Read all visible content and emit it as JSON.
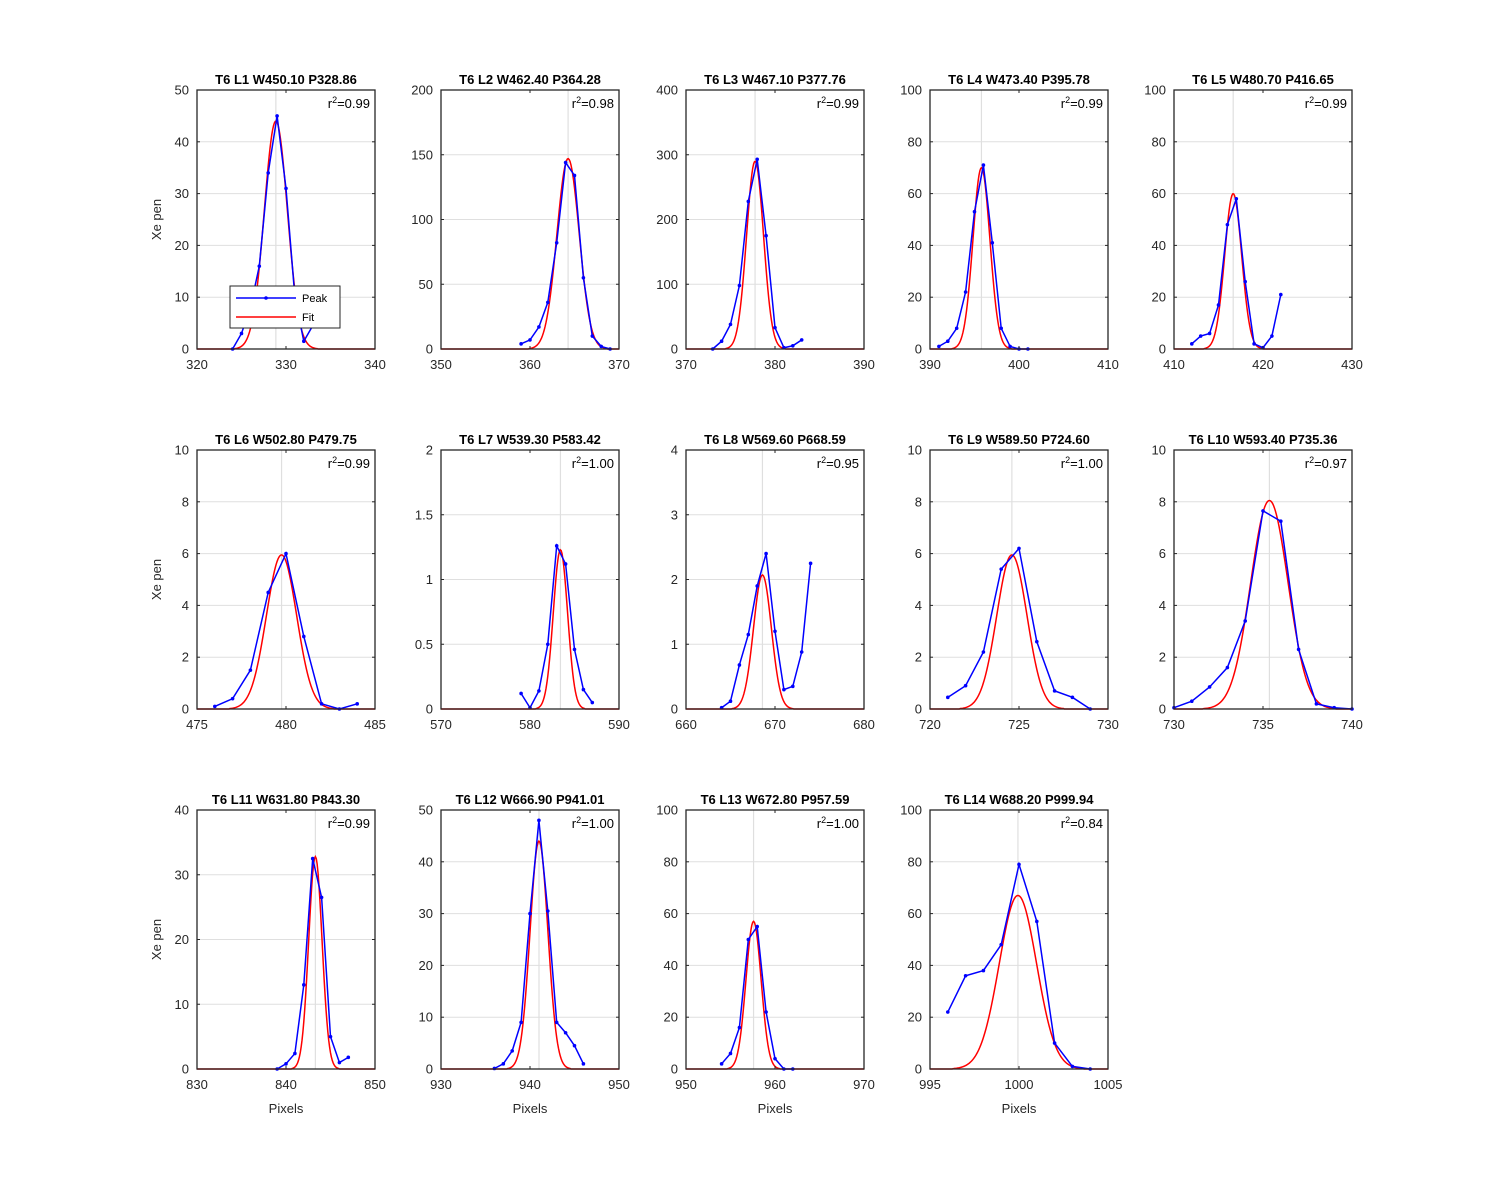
{
  "colors": {
    "peak": "#0000ff",
    "fit": "#ff0000",
    "axis": "#262626",
    "grid": "#dfdfdf"
  },
  "legend": {
    "peak_label": "Peak",
    "fit_label": "Fit",
    "placement": "lower-left of first panel"
  },
  "chart_data": [
    {
      "type": "line",
      "title": "T6 L1 W450.10 P328.86",
      "r2": "r^2=0.99",
      "ylabel": "Xe pen",
      "xlabel": "",
      "xlim": [
        320,
        340
      ],
      "ylim": [
        0,
        50
      ],
      "xticks": [
        320,
        330,
        340
      ],
      "yticks": [
        0,
        10,
        20,
        30,
        40,
        50
      ],
      "center": 328.86,
      "series": [
        {
          "name": "Peak",
          "x": [
            324,
            325,
            326,
            327,
            328,
            329,
            330,
            331,
            332,
            333
          ],
          "y": [
            0,
            3,
            8,
            16,
            34,
            45,
            31,
            10,
            1.5,
            4.5
          ]
        },
        {
          "name": "Fit",
          "gauss": {
            "A": 44,
            "mu": 328.86,
            "sigma": 1.3
          }
        }
      ]
    },
    {
      "type": "line",
      "title": "T6 L2 W462.40 P364.28",
      "r2": "r^2=0.98",
      "ylabel": "",
      "xlabel": "",
      "xlim": [
        350,
        370
      ],
      "ylim": [
        0,
        200
      ],
      "xticks": [
        350,
        360,
        370
      ],
      "yticks": [
        0,
        50,
        100,
        150,
        200
      ],
      "center": 364.28,
      "series": [
        {
          "name": "Peak",
          "x": [
            359,
            360,
            361,
            362,
            363,
            364,
            365,
            366,
            367,
            368,
            369
          ],
          "y": [
            4,
            7,
            17,
            36,
            82,
            144,
            134,
            55,
            10,
            2,
            0
          ]
        },
        {
          "name": "Fit",
          "gauss": {
            "A": 147,
            "mu": 364.28,
            "sigma": 1.25
          }
        }
      ]
    },
    {
      "type": "line",
      "title": "T6 L3 W467.10 P377.76",
      "r2": "r^2=0.99",
      "ylabel": "",
      "xlabel": "",
      "xlim": [
        370,
        390
      ],
      "ylim": [
        0,
        400
      ],
      "xticks": [
        370,
        380,
        390
      ],
      "yticks": [
        0,
        100,
        200,
        300,
        400
      ],
      "center": 377.76,
      "series": [
        {
          "name": "Peak",
          "x": [
            373,
            374,
            375,
            376,
            377,
            378,
            379,
            380,
            381,
            382,
            383
          ],
          "y": [
            0,
            12,
            38,
            98,
            228,
            293,
            175,
            33,
            2,
            5,
            14
          ]
        },
        {
          "name": "Fit",
          "gauss": {
            "A": 290,
            "mu": 377.76,
            "sigma": 0.95
          }
        }
      ]
    },
    {
      "type": "line",
      "title": "T6 L4 W473.40 P395.78",
      "r2": "r^2=0.99",
      "ylabel": "",
      "xlabel": "",
      "xlim": [
        390,
        410
      ],
      "ylim": [
        0,
        100
      ],
      "xticks": [
        390,
        400,
        410
      ],
      "yticks": [
        0,
        20,
        40,
        60,
        80,
        100
      ],
      "center": 395.78,
      "series": [
        {
          "name": "Peak",
          "x": [
            391,
            392,
            393,
            394,
            395,
            396,
            397,
            398,
            399,
            400,
            401
          ],
          "y": [
            1,
            3,
            8,
            22,
            53,
            71,
            41,
            8,
            1,
            0,
            0
          ]
        },
        {
          "name": "Fit",
          "gauss": {
            "A": 70,
            "mu": 395.78,
            "sigma": 0.95
          }
        }
      ]
    },
    {
      "type": "line",
      "title": "T6 L5 W480.70 P416.65",
      "r2": "r^2=0.99",
      "ylabel": "",
      "xlabel": "",
      "xlim": [
        410,
        430
      ],
      "ylim": [
        0,
        100
      ],
      "xticks": [
        410,
        420,
        430
      ],
      "yticks": [
        0,
        20,
        40,
        60,
        80,
        100
      ],
      "center": 416.65,
      "series": [
        {
          "name": "Peak",
          "x": [
            412,
            413,
            414,
            415,
            416,
            417,
            418,
            419,
            420,
            421,
            422
          ],
          "y": [
            2,
            5,
            6,
            17,
            48,
            58,
            26,
            2,
            0.5,
            5,
            21
          ]
        },
        {
          "name": "Fit",
          "gauss": {
            "A": 60,
            "mu": 416.65,
            "sigma": 0.95
          }
        }
      ]
    },
    {
      "type": "line",
      "title": "T6 L6 W502.80 P479.75",
      "r2": "r^2=0.99",
      "ylabel": "Xe pen",
      "xlabel": "",
      "xlim": [
        475,
        485
      ],
      "ylim": [
        0,
        10
      ],
      "xticks": [
        475,
        480,
        485
      ],
      "yticks": [
        0,
        2,
        4,
        6,
        8,
        10
      ],
      "center": 479.75,
      "series": [
        {
          "name": "Peak",
          "x": [
            476,
            477,
            478,
            479,
            480,
            481,
            482,
            483,
            484
          ],
          "y": [
            0.1,
            0.4,
            1.5,
            4.5,
            6,
            2.8,
            0.2,
            0,
            0.2
          ]
        },
        {
          "name": "Fit",
          "gauss": {
            "A": 5.95,
            "mu": 479.75,
            "sigma": 0.85
          }
        }
      ]
    },
    {
      "type": "line",
      "title": "T6 L7 W539.30 P583.42",
      "r2": "r^2=1.00",
      "ylabel": "",
      "xlabel": "",
      "xlim": [
        570,
        590
      ],
      "ylim": [
        0,
        2
      ],
      "xticks": [
        570,
        580,
        590
      ],
      "yticks": [
        0,
        0.5,
        1,
        1.5,
        2
      ],
      "center": 583.42,
      "series": [
        {
          "name": "Peak",
          "x": [
            579,
            580,
            581,
            582,
            583,
            584,
            585,
            586,
            587
          ],
          "y": [
            0.12,
            0.01,
            0.14,
            0.5,
            1.26,
            1.12,
            0.46,
            0.15,
            0.05
          ]
        },
        {
          "name": "Fit",
          "gauss": {
            "A": 1.23,
            "mu": 583.42,
            "sigma": 0.8
          }
        }
      ]
    },
    {
      "type": "line",
      "title": "T6 L8 W569.60 P668.59",
      "r2": "r^2=0.95",
      "ylabel": "",
      "xlabel": "",
      "xlim": [
        660,
        680
      ],
      "ylim": [
        0,
        4
      ],
      "xticks": [
        660,
        670,
        680
      ],
      "yticks": [
        0,
        1,
        2,
        3,
        4
      ],
      "center": 668.59,
      "series": [
        {
          "name": "Peak",
          "x": [
            664,
            665,
            666,
            667,
            668,
            669,
            670,
            671,
            672,
            673,
            674
          ],
          "y": [
            0.02,
            0.12,
            0.68,
            1.15,
            1.9,
            2.4,
            1.2,
            0.3,
            0.35,
            0.88,
            2.25
          ]
        },
        {
          "name": "Fit",
          "gauss": {
            "A": 2.07,
            "mu": 668.59,
            "sigma": 1.0
          }
        }
      ]
    },
    {
      "type": "line",
      "title": "T6 L9 W589.50 P724.60",
      "r2": "r^2=1.00",
      "ylabel": "",
      "xlabel": "",
      "xlim": [
        720,
        730
      ],
      "ylim": [
        0,
        10
      ],
      "xticks": [
        720,
        725,
        730
      ],
      "yticks": [
        0,
        2,
        4,
        6,
        8,
        10
      ],
      "center": 724.6,
      "series": [
        {
          "name": "Peak",
          "x": [
            721,
            722,
            723,
            724,
            725,
            726,
            727,
            728,
            729
          ],
          "y": [
            0.45,
            0.9,
            2.2,
            5.4,
            6.2,
            2.6,
            0.7,
            0.45,
            0
          ]
        },
        {
          "name": "Fit",
          "gauss": {
            "A": 5.95,
            "mu": 724.6,
            "sigma": 0.85
          }
        }
      ]
    },
    {
      "type": "line",
      "title": "T6 L10 W593.40 P735.36",
      "r2": "r^2=0.97",
      "ylabel": "",
      "xlabel": "",
      "xlim": [
        730,
        740
      ],
      "ylim": [
        0,
        10
      ],
      "xticks": [
        730,
        735,
        740
      ],
      "yticks": [
        0,
        2,
        4,
        6,
        8,
        10
      ],
      "center": 735.36,
      "series": [
        {
          "name": "Peak",
          "x": [
            730,
            731,
            732,
            733,
            734,
            735,
            736,
            737,
            738,
            739,
            740
          ],
          "y": [
            0.05,
            0.3,
            0.85,
            1.6,
            3.4,
            7.65,
            7.25,
            2.3,
            0.2,
            0.05,
            0
          ]
        },
        {
          "name": "Fit",
          "gauss": {
            "A": 8.05,
            "mu": 735.36,
            "sigma": 1.05
          }
        }
      ]
    },
    {
      "type": "line",
      "title": "T6 L11 W631.80 P843.30",
      "r2": "r^2=0.99",
      "ylabel": "Xe pen",
      "xlabel": "Pixels",
      "xlim": [
        830,
        850
      ],
      "ylim": [
        0,
        40
      ],
      "xticks": [
        830,
        840,
        850
      ],
      "yticks": [
        0,
        10,
        20,
        30,
        40
      ],
      "center": 843.3,
      "series": [
        {
          "name": "Peak",
          "x": [
            839,
            840,
            841,
            842,
            843,
            844,
            845,
            846,
            847
          ],
          "y": [
            0,
            0.8,
            2.4,
            13,
            32.5,
            26.5,
            5,
            1,
            1.8
          ]
        },
        {
          "name": "Fit",
          "gauss": {
            "A": 32.8,
            "mu": 843.3,
            "sigma": 0.75
          }
        }
      ]
    },
    {
      "type": "line",
      "title": "T6 L12 W666.90 P941.01",
      "r2": "r^2=1.00",
      "ylabel": "",
      "xlabel": "Pixels",
      "xlim": [
        930,
        950
      ],
      "ylim": [
        0,
        50
      ],
      "xticks": [
        930,
        940,
        950
      ],
      "yticks": [
        0,
        10,
        20,
        30,
        40,
        50
      ],
      "center": 941.01,
      "series": [
        {
          "name": "Peak",
          "x": [
            936,
            937,
            938,
            939,
            940,
            941,
            942,
            943,
            944,
            945,
            946
          ],
          "y": [
            0.1,
            1,
            3.5,
            9,
            30,
            48,
            30.5,
            9,
            7,
            4.5,
            1
          ]
        },
        {
          "name": "Fit",
          "gauss": {
            "A": 44,
            "mu": 941.01,
            "sigma": 1.0
          }
        }
      ]
    },
    {
      "type": "line",
      "title": "T6 L13 W672.80 P957.59",
      "r2": "r^2=1.00",
      "ylabel": "",
      "xlabel": "Pixels",
      "xlim": [
        950,
        970
      ],
      "ylim": [
        0,
        100
      ],
      "xticks": [
        950,
        960,
        970
      ],
      "yticks": [
        0,
        20,
        40,
        60,
        80,
        100
      ],
      "center": 957.59,
      "series": [
        {
          "name": "Peak",
          "x": [
            954,
            955,
            956,
            957,
            958,
            959,
            960,
            961,
            962
          ],
          "y": [
            2,
            6,
            16,
            50,
            55,
            22,
            4,
            0,
            0
          ]
        },
        {
          "name": "Fit",
          "gauss": {
            "A": 57,
            "mu": 957.59,
            "sigma": 0.85
          }
        }
      ]
    },
    {
      "type": "line",
      "title": "T6 L14 W688.20 P999.94",
      "r2": "r^2=0.84",
      "ylabel": "",
      "xlabel": "Pixels",
      "xlim": [
        995,
        1005
      ],
      "ylim": [
        0,
        100
      ],
      "xticks": [
        995,
        1000,
        1005
      ],
      "yticks": [
        0,
        20,
        40,
        60,
        80,
        100
      ],
      "center": 999.94,
      "series": [
        {
          "name": "Peak",
          "x": [
            996,
            997,
            998,
            999,
            1000,
            1001,
            1002,
            1003,
            1004
          ],
          "y": [
            22,
            36,
            38,
            48,
            79,
            57,
            10,
            1,
            0
          ]
        },
        {
          "name": "Fit",
          "gauss": {
            "A": 67,
            "mu": 999.94,
            "sigma": 1.05
          }
        }
      ]
    }
  ]
}
